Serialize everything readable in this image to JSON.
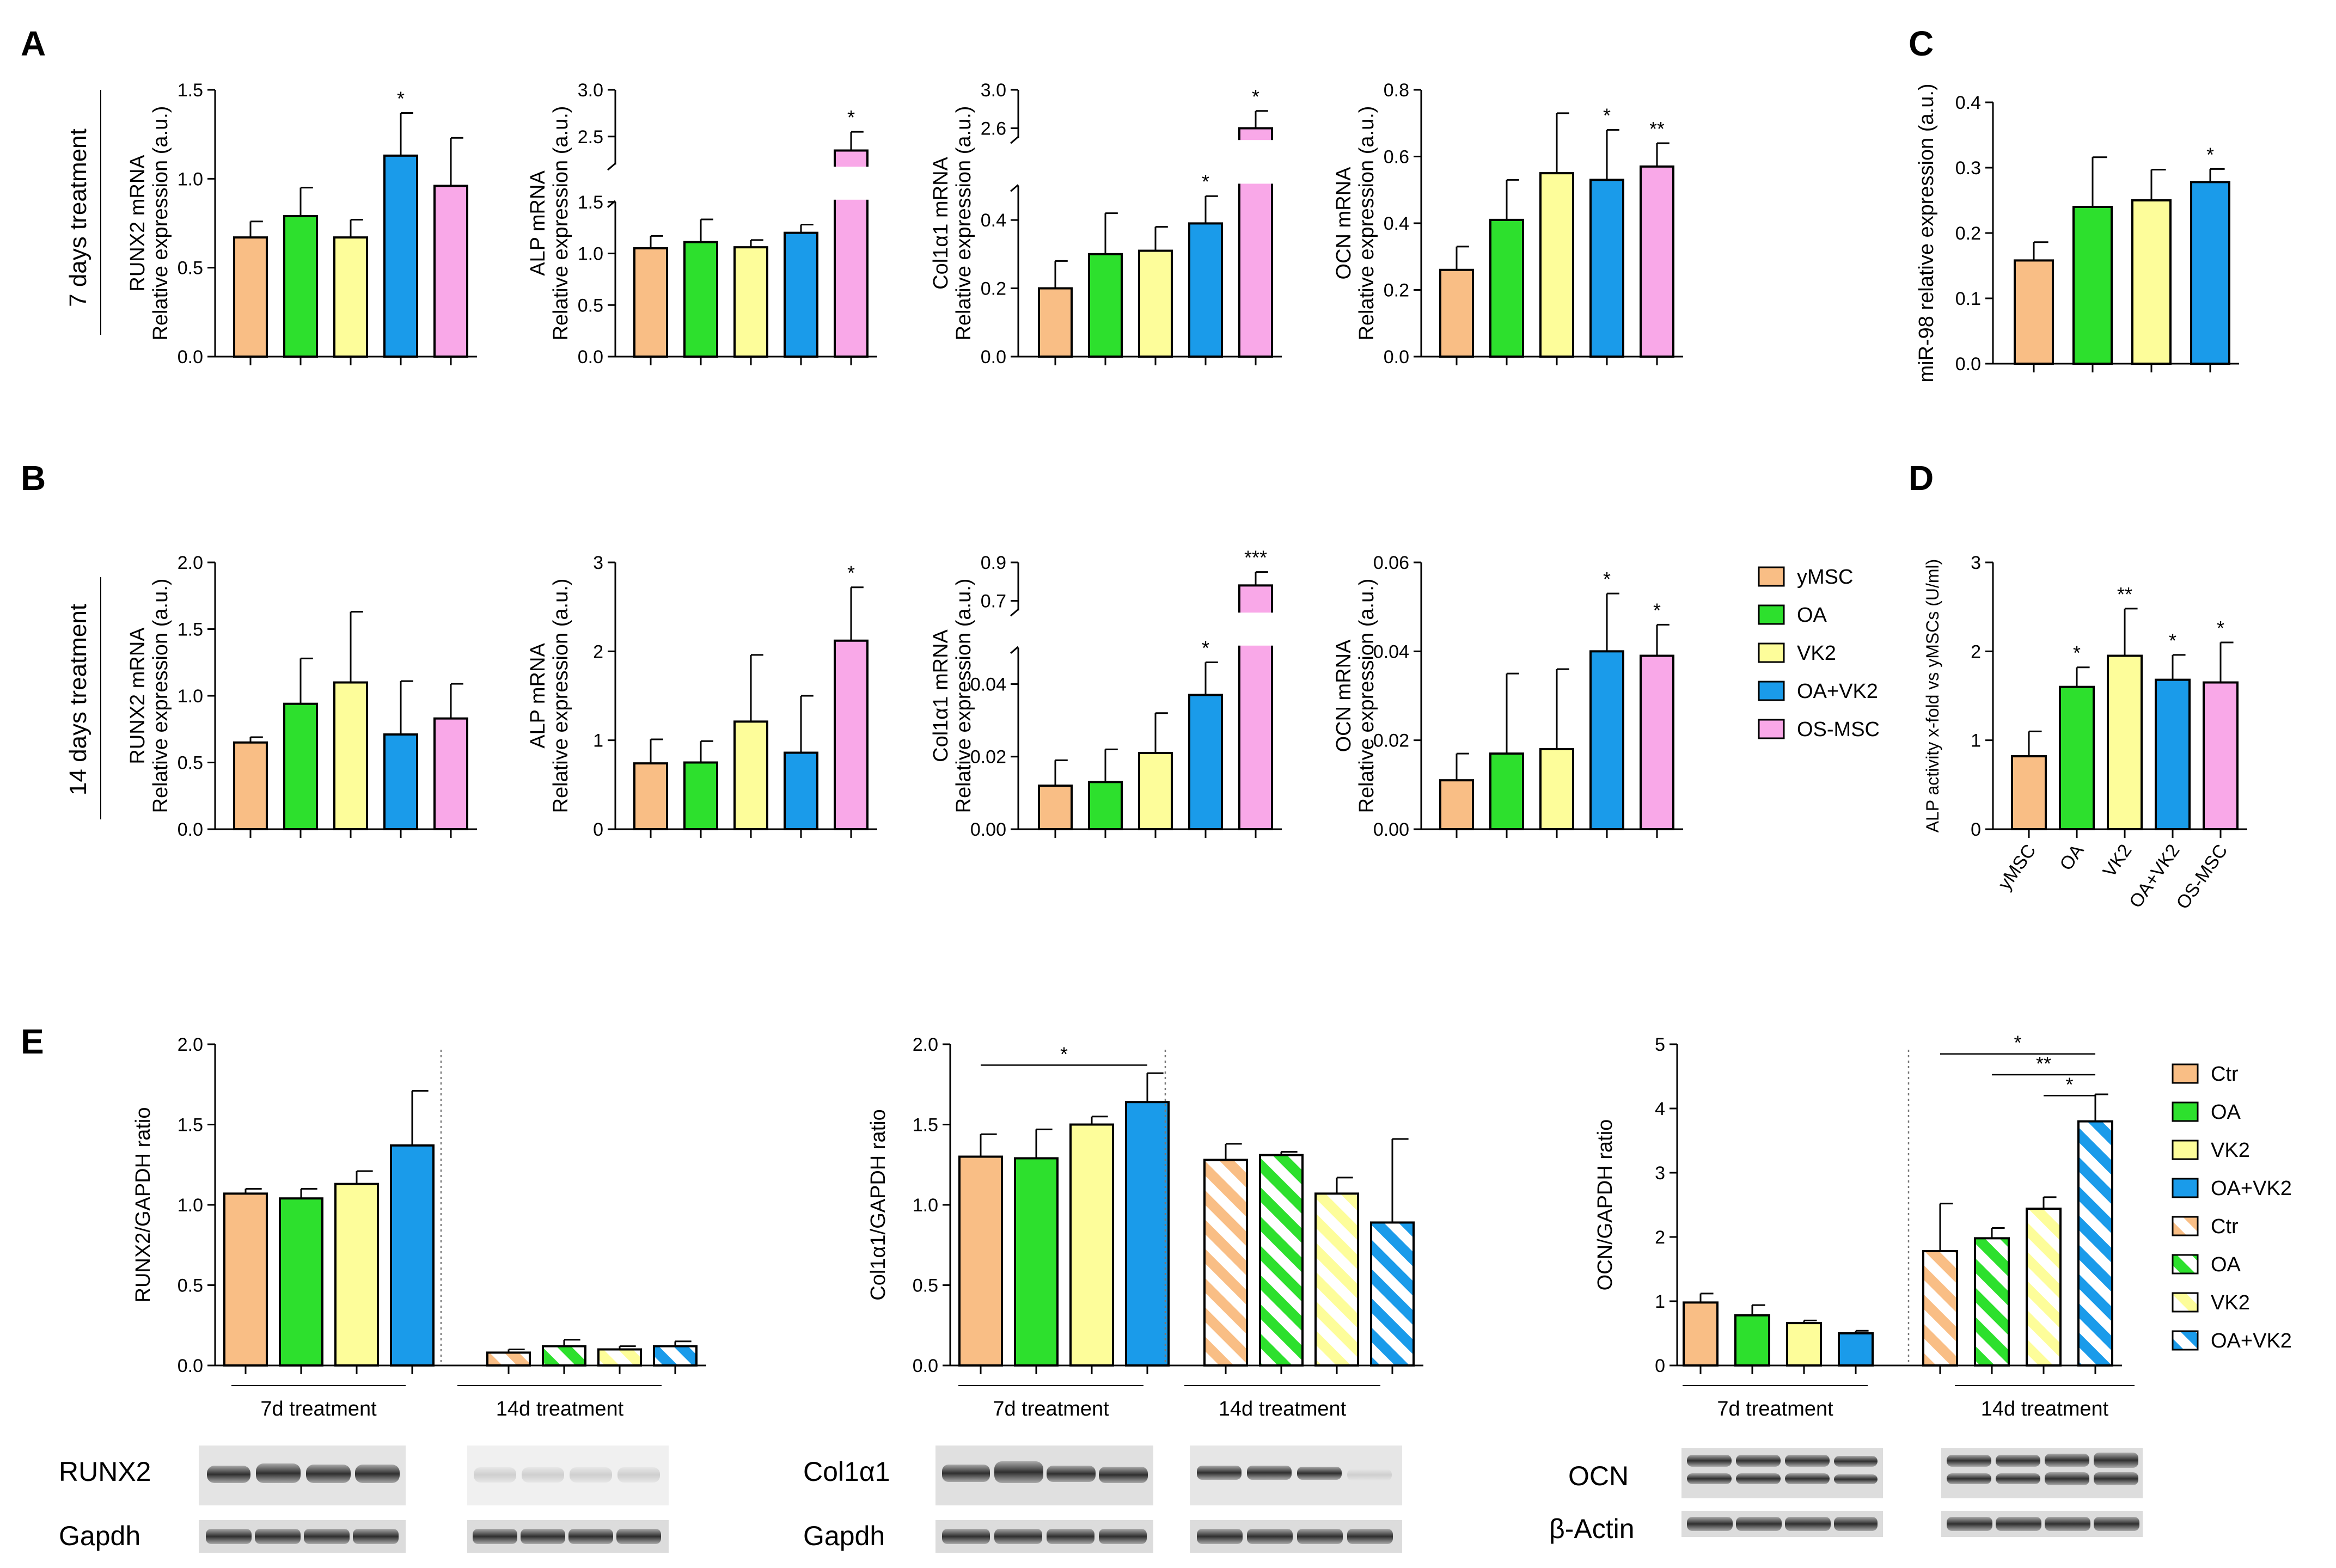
{
  "colors": {
    "yMSC": "#F9BE85",
    "OA": "#2DE02D",
    "VK2": "#FDFD9A",
    "OAVK2": "#1A9BEA",
    "OSMSC": "#F9A8E8"
  },
  "panel_labels": [
    "A",
    "B",
    "C",
    "D",
    "E"
  ],
  "row_labels": {
    "a": "7 days treatment",
    "b": "14 days treatment"
  },
  "legend_top": [
    "yMSC",
    "OA",
    "VK2",
    "OA+VK2",
    "OS-MSC"
  ],
  "legend_e": [
    "Ctr",
    "OA",
    "VK2",
    "OA+VK2",
    "Ctr",
    "OA",
    "VK2",
    "OA+VK2"
  ],
  "treatments": {
    "d7": "7d treatment",
    "d14": "14d treatment"
  },
  "blots": {
    "runx2": {
      "top": "RUNX2",
      "bottom": "Gapdh"
    },
    "col": {
      "top": "Col1α1",
      "bottom": "Gapdh"
    },
    "ocn": {
      "top": "OCN",
      "bottom": "β-Actin"
    }
  },
  "chart_data": [
    {
      "id": "A1",
      "type": "bar",
      "ylabel": [
        "RUNX2 mRNA",
        "Relative expression (a.u.)"
      ],
      "ylim": [
        0,
        1.5
      ],
      "ticks": [
        "0.0",
        "0.5",
        "1.0",
        "1.5"
      ],
      "categories": [
        "yMSC",
        "OA",
        "VK2",
        "OA+VK2",
        "OS-MSC"
      ],
      "values": [
        0.67,
        0.79,
        0.67,
        1.13,
        0.96
      ],
      "errors": [
        0.09,
        0.16,
        0.1,
        0.24,
        0.27
      ],
      "annotations": [
        "",
        "",
        "",
        "*",
        ""
      ]
    },
    {
      "id": "A2",
      "type": "bar",
      "ylabel": [
        "ALP mRNA",
        "Relative expression (a.u.)"
      ],
      "ylim": [
        0,
        3.0
      ],
      "ticks": [
        "0.0",
        "0.5",
        "1.0",
        "1.5",
        "2.5",
        "3.0"
      ],
      "axis_break": [
        1.5,
        2.2
      ],
      "categories": [
        "yMSC",
        "OA",
        "VK2",
        "OA+VK2",
        "OS-MSC"
      ],
      "values": [
        1.05,
        1.11,
        1.06,
        1.2,
        2.35
      ],
      "errors": [
        0.12,
        0.22,
        0.07,
        0.08,
        0.2
      ],
      "annotations": [
        "",
        "",
        "",
        "",
        "*"
      ]
    },
    {
      "id": "A3",
      "type": "bar",
      "ylabel": [
        "Col1α1 mRNA",
        "Relative expression (a.u.)"
      ],
      "ylim": [
        0,
        3.0
      ],
      "ticks": [
        "0.0",
        "0.2",
        "0.4",
        "2.6",
        "3.0"
      ],
      "axis_break": [
        0.5,
        2.5
      ],
      "categories": [
        "yMSC",
        "OA",
        "VK2",
        "OA+VK2",
        "OS-MSC"
      ],
      "values": [
        0.2,
        0.3,
        0.31,
        0.39,
        2.6
      ],
      "errors": [
        0.08,
        0.12,
        0.07,
        0.08,
        0.18
      ],
      "annotations": [
        "",
        "",
        "",
        "*",
        "*"
      ]
    },
    {
      "id": "A4",
      "type": "bar",
      "ylabel": [
        "OCN mRNA",
        "Relative expression (a.u.)"
      ],
      "ylim": [
        0,
        0.8
      ],
      "ticks": [
        "0.0",
        "0.2",
        "0.4",
        "0.6",
        "0.8"
      ],
      "categories": [
        "yMSC",
        "OA",
        "VK2",
        "OA+VK2",
        "OS-MSC"
      ],
      "values": [
        0.26,
        0.41,
        0.55,
        0.53,
        0.57
      ],
      "errors": [
        0.07,
        0.12,
        0.18,
        0.15,
        0.07
      ],
      "annotations": [
        "",
        "",
        "",
        "*",
        "**"
      ]
    },
    {
      "id": "B1",
      "type": "bar",
      "ylabel": [
        "RUNX2 mRNA",
        "Relative expression (a.u.)"
      ],
      "ylim": [
        0,
        2.0
      ],
      "ticks": [
        "0.0",
        "0.5",
        "1.0",
        "1.5",
        "2.0"
      ],
      "categories": [
        "yMSC",
        "OA",
        "VK2",
        "OA+VK2",
        "OS-MSC"
      ],
      "values": [
        0.65,
        0.94,
        1.1,
        0.71,
        0.83
      ],
      "errors": [
        0.04,
        0.34,
        0.53,
        0.4,
        0.26
      ],
      "annotations": [
        "",
        "",
        "",
        "",
        ""
      ]
    },
    {
      "id": "B2",
      "type": "bar",
      "ylabel": [
        "ALP mRNA",
        "Relative expression (a.u.)"
      ],
      "ylim": [
        0,
        3
      ],
      "ticks": [
        "0",
        "1",
        "2",
        "3"
      ],
      "categories": [
        "yMSC",
        "OA",
        "VK2",
        "OA+VK2",
        "OS-MSC"
      ],
      "values": [
        0.74,
        0.75,
        1.21,
        0.86,
        2.12
      ],
      "errors": [
        0.27,
        0.24,
        0.75,
        0.64,
        0.6
      ],
      "annotations": [
        "",
        "",
        "",
        "",
        "*"
      ]
    },
    {
      "id": "B3",
      "type": "bar",
      "ylabel": [
        "Col1α1 mRNA",
        "Relative expression (a.u.)"
      ],
      "ylim": [
        0,
        0.9
      ],
      "ticks": [
        "0.00",
        "0.02",
        "0.04",
        "0.7",
        "0.9"
      ],
      "axis_break": [
        0.05,
        0.65
      ],
      "categories": [
        "yMSC",
        "OA",
        "VK2",
        "OA+VK2",
        "OS-MSC"
      ],
      "values": [
        0.012,
        0.013,
        0.021,
        0.037,
        0.78
      ],
      "errors": [
        0.007,
        0.009,
        0.011,
        0.009,
        0.07
      ],
      "annotations": [
        "",
        "",
        "",
        "*",
        "***"
      ]
    },
    {
      "id": "B4",
      "type": "bar",
      "ylabel": [
        "OCN mRNA",
        "Relative expression (a.u.)"
      ],
      "ylim": [
        0,
        0.06
      ],
      "ticks": [
        "0.00",
        "0.02",
        "0.04",
        "0.06"
      ],
      "categories": [
        "yMSC",
        "OA",
        "VK2",
        "OA+VK2",
        "OS-MSC"
      ],
      "values": [
        0.011,
        0.017,
        0.018,
        0.04,
        0.039
      ],
      "errors": [
        0.006,
        0.018,
        0.018,
        0.013,
        0.007
      ],
      "annotations": [
        "",
        "",
        "",
        "*",
        "*"
      ]
    },
    {
      "id": "C",
      "type": "bar",
      "ylabel": [
        "miR-98 relative expression (a.u.)"
      ],
      "ylim": [
        0,
        0.4
      ],
      "ticks": [
        "0.0",
        "0.1",
        "0.2",
        "0.3",
        "0.4"
      ],
      "categories": [
        "yMSC",
        "OA",
        "VK2",
        "OA+VK2"
      ],
      "values": [
        0.158,
        0.24,
        0.25,
        0.278
      ],
      "errors": [
        0.028,
        0.076,
        0.047,
        0.02
      ],
      "annotations": [
        "",
        "",
        "",
        "*"
      ]
    },
    {
      "id": "D",
      "type": "bar",
      "ylabel": [
        "ALP activity x-fold vs yMSCs (U/ml)"
      ],
      "ylim": [
        0,
        3
      ],
      "ticks": [
        "0",
        "1",
        "2",
        "3"
      ],
      "categories": [
        "yMSC",
        "OA",
        "VK2",
        "OA+VK2",
        "OS-MSC"
      ],
      "values": [
        0.82,
        1.6,
        1.95,
        1.68,
        1.65
      ],
      "errors": [
        0.28,
        0.22,
        0.53,
        0.28,
        0.45
      ],
      "annotations": [
        "",
        "*",
        "**",
        "*",
        "*"
      ]
    },
    {
      "id": "E1",
      "type": "bar",
      "ylabel": [
        "RUNX2/GAPDH ratio"
      ],
      "ylim": [
        0,
        2.0
      ],
      "ticks": [
        "0.0",
        "0.5",
        "1.0",
        "1.5",
        "2.0"
      ],
      "categories": [
        "Ctr",
        "OA",
        "VK2",
        "OA+VK2",
        "Ctr",
        "OA",
        "VK2",
        "OA+VK2"
      ],
      "values": [
        1.07,
        1.04,
        1.13,
        1.37,
        0.08,
        0.12,
        0.1,
        0.12
      ],
      "errors": [
        0.03,
        0.06,
        0.08,
        0.34,
        0.02,
        0.04,
        0.02,
        0.03
      ],
      "significance": [
        {
          "from": 0,
          "to": 0,
          "label": ""
        }
      ]
    },
    {
      "id": "E2",
      "type": "bar",
      "ylabel": [
        "Col1α1/GAPDH ratio"
      ],
      "ylim": [
        0,
        2.0
      ],
      "ticks": [
        "0.0",
        "0.5",
        "1.0",
        "1.5",
        "2.0"
      ],
      "categories": [
        "Ctr",
        "OA",
        "VK2",
        "OA+VK2",
        "Ctr",
        "OA",
        "VK2",
        "OA+VK2"
      ],
      "values": [
        1.3,
        1.29,
        1.5,
        1.64,
        1.28,
        1.31,
        1.07,
        0.89
      ],
      "errors": [
        0.14,
        0.18,
        0.05,
        0.18,
        0.1,
        0.02,
        0.1,
        0.52
      ],
      "significance": [
        {
          "from": 0,
          "to": 3,
          "label": "*"
        }
      ]
    },
    {
      "id": "E3",
      "type": "bar",
      "ylabel": [
        "OCN/GAPDH ratio"
      ],
      "ylim": [
        0,
        5
      ],
      "ticks": [
        "0",
        "1",
        "2",
        "3",
        "4",
        "5"
      ],
      "categories": [
        "Ctr",
        "OA",
        "VK2",
        "OA+VK2",
        "Ctr",
        "OA",
        "VK2",
        "OA+VK2"
      ],
      "values": [
        0.98,
        0.78,
        0.66,
        0.5,
        1.78,
        1.98,
        2.44,
        3.8
      ],
      "errors": [
        0.14,
        0.16,
        0.04,
        0.04,
        0.74,
        0.16,
        0.18,
        0.42
      ],
      "significance": [
        {
          "from": 4,
          "to": 7,
          "label": "*"
        },
        {
          "from": 5,
          "to": 7,
          "label": "**"
        },
        {
          "from": 6,
          "to": 7,
          "label": "*"
        }
      ]
    }
  ]
}
